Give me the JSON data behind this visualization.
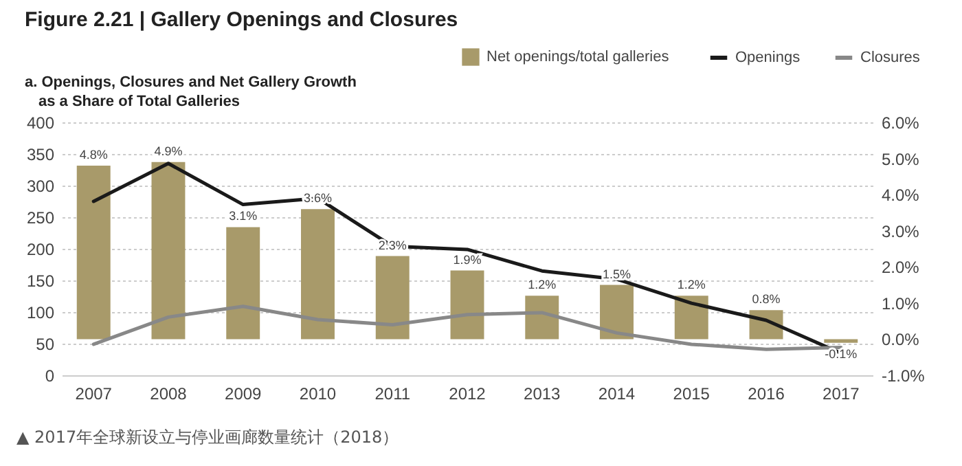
{
  "chart_data": {
    "type": "bar",
    "title": "Figure 2.21 | Gallery Openings and Closures",
    "subtitle": "a. Openings, Closures and Net Gallery Growth as a Share of Total Galleries",
    "annotations": [
      "▲ 2017年全球新设立与停业画廊数量统计（2018）"
    ],
    "categories": [
      "2007",
      "2008",
      "2009",
      "2010",
      "2011",
      "2012",
      "2013",
      "2014",
      "2015",
      "2016",
      "2017"
    ],
    "series": [
      {
        "name": "Net openings/total galleries",
        "axis": "y2",
        "color": "#a89a6a",
        "values": [
          4.8,
          4.9,
          3.1,
          3.6,
          2.3,
          1.9,
          1.2,
          1.5,
          1.2,
          0.8,
          -0.1
        ],
        "value_labels": [
          "4.8%",
          "4.9%",
          "3.1%",
          "3.6%",
          "2.3%",
          "1.9%",
          "1.2%",
          "1.5%",
          "1.2%",
          "0.8%",
          "-0.1%"
        ]
      },
      {
        "name": "Openings",
        "type": "line",
        "axis": "y",
        "color": "#1a1a1a",
        "values": [
          275,
          335,
          270,
          280,
          204,
          199,
          165,
          152,
          114,
          87,
          35
        ]
      },
      {
        "name": "Closures",
        "type": "line",
        "axis": "y",
        "color": "#888888",
        "values": [
          49,
          92,
          109,
          88,
          80,
          96,
          99,
          67,
          49,
          41,
          44
        ]
      }
    ],
    "ylim": [
      0,
      400
    ],
    "yticks": [
      0,
      50,
      100,
      150,
      200,
      250,
      300,
      350,
      400
    ],
    "y2lim": [
      -1,
      6
    ],
    "y2ticks": [
      {
        "value": -1,
        "label": "-1.0%"
      },
      {
        "value": 0,
        "label": "0.0%"
      },
      {
        "value": 1,
        "label": "1.0%"
      },
      {
        "value": 2,
        "label": "2.0%"
      },
      {
        "value": 3,
        "label": "3.0%"
      },
      {
        "value": 4,
        "label": "4.0%"
      },
      {
        "value": 5,
        "label": "5.0%"
      },
      {
        "value": 6,
        "label": "6.0%"
      }
    ],
    "grid": "y",
    "legend": "top right"
  }
}
